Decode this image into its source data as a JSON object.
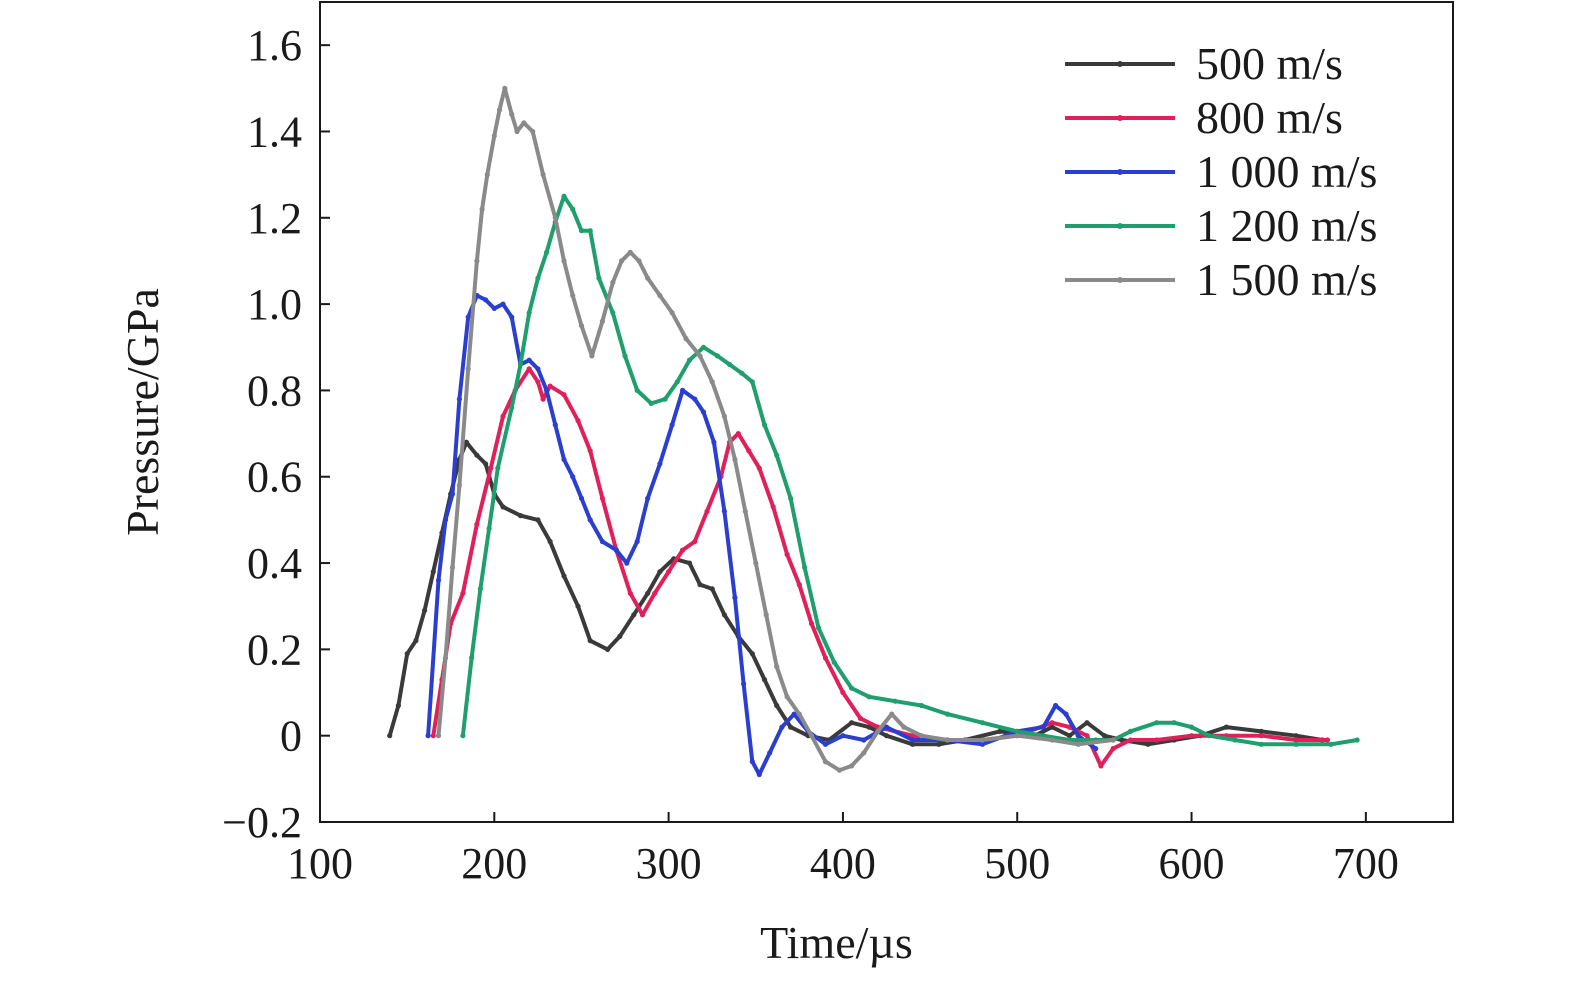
{
  "chart_data": {
    "type": "line",
    "title": "",
    "xlabel": "Time/µs",
    "ylabel": "Pressure/GPa",
    "xlim": [
      100,
      750
    ],
    "ylim": [
      -0.2,
      1.7
    ],
    "x_ticks": [
      100,
      200,
      300,
      400,
      500,
      600,
      700
    ],
    "x_tick_labels": [
      "100",
      "200",
      "300",
      "400",
      "500",
      "600",
      "700"
    ],
    "y_ticks": [
      -0.2,
      0,
      0.2,
      0.4,
      0.6,
      0.8,
      1.0,
      1.2,
      1.4,
      1.6
    ],
    "y_tick_labels": [
      "−0.2",
      "0",
      "0.2",
      "0.4",
      "0.6",
      "0.8",
      "1.0",
      "1.2",
      "1.4",
      "1.6"
    ],
    "grid": false,
    "legend_position": "top-right",
    "series": [
      {
        "name": "500 m/s",
        "color": "#3a3a3a",
        "points": [
          [
            140,
            0.0
          ],
          [
            145,
            0.07
          ],
          [
            150,
            0.19
          ],
          [
            155,
            0.22
          ],
          [
            160,
            0.29
          ],
          [
            165,
            0.38
          ],
          [
            170,
            0.47
          ],
          [
            175,
            0.56
          ],
          [
            180,
            0.64
          ],
          [
            184,
            0.68
          ],
          [
            190,
            0.65
          ],
          [
            195,
            0.63
          ],
          [
            200,
            0.56
          ],
          [
            205,
            0.53
          ],
          [
            215,
            0.51
          ],
          [
            225,
            0.5
          ],
          [
            232,
            0.45
          ],
          [
            240,
            0.37
          ],
          [
            248,
            0.3
          ],
          [
            255,
            0.22
          ],
          [
            265,
            0.2
          ],
          [
            272,
            0.23
          ],
          [
            280,
            0.28
          ],
          [
            288,
            0.33
          ],
          [
            295,
            0.38
          ],
          [
            303,
            0.41
          ],
          [
            312,
            0.4
          ],
          [
            318,
            0.35
          ],
          [
            325,
            0.34
          ],
          [
            332,
            0.28
          ],
          [
            340,
            0.23
          ],
          [
            348,
            0.19
          ],
          [
            355,
            0.13
          ],
          [
            362,
            0.07
          ],
          [
            370,
            0.02
          ],
          [
            380,
            0.0
          ],
          [
            392,
            -0.01
          ],
          [
            405,
            0.03
          ],
          [
            415,
            0.02
          ],
          [
            425,
            0.0
          ],
          [
            440,
            -0.02
          ],
          [
            455,
            -0.02
          ],
          [
            470,
            -0.01
          ],
          [
            490,
            0.01
          ],
          [
            510,
            0.0
          ],
          [
            520,
            0.02
          ],
          [
            530,
            0.0
          ],
          [
            540,
            0.03
          ],
          [
            550,
            0.0
          ],
          [
            560,
            -0.01
          ],
          [
            575,
            -0.02
          ],
          [
            590,
            -0.01
          ],
          [
            605,
            0.0
          ],
          [
            620,
            0.02
          ],
          [
            640,
            0.01
          ],
          [
            660,
            0.0
          ],
          [
            675,
            -0.01
          ]
        ]
      },
      {
        "name": "800 m/s",
        "color": "#e0205a",
        "points": [
          [
            165,
            0.0
          ],
          [
            170,
            0.13
          ],
          [
            175,
            0.26
          ],
          [
            182,
            0.33
          ],
          [
            190,
            0.49
          ],
          [
            198,
            0.62
          ],
          [
            205,
            0.74
          ],
          [
            212,
            0.8
          ],
          [
            220,
            0.85
          ],
          [
            225,
            0.82
          ],
          [
            228,
            0.78
          ],
          [
            232,
            0.81
          ],
          [
            240,
            0.79
          ],
          [
            248,
            0.73
          ],
          [
            255,
            0.66
          ],
          [
            262,
            0.55
          ],
          [
            270,
            0.43
          ],
          [
            278,
            0.33
          ],
          [
            285,
            0.28
          ],
          [
            292,
            0.33
          ],
          [
            300,
            0.38
          ],
          [
            308,
            0.43
          ],
          [
            315,
            0.45
          ],
          [
            322,
            0.52
          ],
          [
            330,
            0.6
          ],
          [
            335,
            0.68
          ],
          [
            340,
            0.7
          ],
          [
            346,
            0.66
          ],
          [
            352,
            0.62
          ],
          [
            360,
            0.53
          ],
          [
            368,
            0.42
          ],
          [
            375,
            0.35
          ],
          [
            382,
            0.26
          ],
          [
            390,
            0.18
          ],
          [
            400,
            0.1
          ],
          [
            410,
            0.04
          ],
          [
            420,
            0.02
          ],
          [
            440,
            0.0
          ],
          [
            460,
            -0.01
          ],
          [
            480,
            -0.01
          ],
          [
            500,
            0.0
          ],
          [
            520,
            0.03
          ],
          [
            530,
            0.02
          ],
          [
            540,
            0.0
          ],
          [
            548,
            -0.07
          ],
          [
            555,
            -0.03
          ],
          [
            565,
            -0.01
          ],
          [
            580,
            -0.01
          ],
          [
            600,
            0.0
          ],
          [
            620,
            0.0
          ],
          [
            640,
            0.0
          ],
          [
            660,
            -0.01
          ],
          [
            678,
            -0.01
          ]
        ]
      },
      {
        "name": "1 000 m/s",
        "color": "#2a3ed0",
        "points": [
          [
            162,
            0.0
          ],
          [
            168,
            0.36
          ],
          [
            172,
            0.5
          ],
          [
            176,
            0.56
          ],
          [
            180,
            0.78
          ],
          [
            185,
            0.97
          ],
          [
            190,
            1.02
          ],
          [
            195,
            1.01
          ],
          [
            200,
            0.99
          ],
          [
            205,
            1.0
          ],
          [
            210,
            0.97
          ],
          [
            215,
            0.86
          ],
          [
            220,
            0.87
          ],
          [
            225,
            0.85
          ],
          [
            230,
            0.8
          ],
          [
            235,
            0.72
          ],
          [
            240,
            0.64
          ],
          [
            245,
            0.6
          ],
          [
            250,
            0.55
          ],
          [
            255,
            0.5
          ],
          [
            262,
            0.45
          ],
          [
            270,
            0.43
          ],
          [
            276,
            0.4
          ],
          [
            282,
            0.45
          ],
          [
            288,
            0.55
          ],
          [
            295,
            0.63
          ],
          [
            302,
            0.72
          ],
          [
            308,
            0.8
          ],
          [
            315,
            0.78
          ],
          [
            320,
            0.75
          ],
          [
            326,
            0.68
          ],
          [
            332,
            0.52
          ],
          [
            338,
            0.32
          ],
          [
            343,
            0.12
          ],
          [
            348,
            -0.06
          ],
          [
            352,
            -0.09
          ],
          [
            358,
            -0.04
          ],
          [
            365,
            0.02
          ],
          [
            372,
            0.05
          ],
          [
            380,
            0.01
          ],
          [
            390,
            -0.02
          ],
          [
            400,
            0.0
          ],
          [
            412,
            -0.01
          ],
          [
            425,
            0.02
          ],
          [
            440,
            -0.01
          ],
          [
            460,
            -0.01
          ],
          [
            480,
            -0.02
          ],
          [
            500,
            0.01
          ],
          [
            515,
            0.02
          ],
          [
            522,
            0.07
          ],
          [
            528,
            0.05
          ],
          [
            535,
            0.0
          ],
          [
            545,
            -0.03
          ]
        ]
      },
      {
        "name": "1 200 m/s",
        "color": "#1f9e6e",
        "points": [
          [
            182,
            0.0
          ],
          [
            187,
            0.18
          ],
          [
            192,
            0.34
          ],
          [
            197,
            0.48
          ],
          [
            202,
            0.62
          ],
          [
            210,
            0.76
          ],
          [
            215,
            0.86
          ],
          [
            220,
            0.98
          ],
          [
            225,
            1.06
          ],
          [
            230,
            1.12
          ],
          [
            235,
            1.19
          ],
          [
            240,
            1.25
          ],
          [
            245,
            1.22
          ],
          [
            250,
            1.17
          ],
          [
            255,
            1.17
          ],
          [
            260,
            1.06
          ],
          [
            268,
            0.98
          ],
          [
            275,
            0.88
          ],
          [
            282,
            0.8
          ],
          [
            290,
            0.77
          ],
          [
            298,
            0.78
          ],
          [
            305,
            0.82
          ],
          [
            312,
            0.87
          ],
          [
            320,
            0.9
          ],
          [
            328,
            0.88
          ],
          [
            335,
            0.86
          ],
          [
            342,
            0.84
          ],
          [
            348,
            0.82
          ],
          [
            355,
            0.72
          ],
          [
            362,
            0.65
          ],
          [
            370,
            0.55
          ],
          [
            378,
            0.39
          ],
          [
            386,
            0.25
          ],
          [
            395,
            0.17
          ],
          [
            405,
            0.11
          ],
          [
            415,
            0.09
          ],
          [
            430,
            0.08
          ],
          [
            445,
            0.07
          ],
          [
            460,
            0.05
          ],
          [
            480,
            0.03
          ],
          [
            500,
            0.01
          ],
          [
            515,
            0.0
          ],
          [
            530,
            -0.01
          ],
          [
            545,
            -0.01
          ],
          [
            555,
            -0.01
          ],
          [
            565,
            0.01
          ],
          [
            580,
            0.03
          ],
          [
            590,
            0.03
          ],
          [
            600,
            0.02
          ],
          [
            610,
            0.0
          ],
          [
            625,
            -0.01
          ],
          [
            640,
            -0.02
          ],
          [
            660,
            -0.02
          ],
          [
            680,
            -0.02
          ],
          [
            695,
            -0.01
          ]
        ]
      },
      {
        "name": "1 500 m/s",
        "color": "#8a8a8a",
        "points": [
          [
            168,
            0.0
          ],
          [
            172,
            0.18
          ],
          [
            176,
            0.39
          ],
          [
            180,
            0.58
          ],
          [
            185,
            0.85
          ],
          [
            190,
            1.1
          ],
          [
            193,
            1.22
          ],
          [
            196,
            1.3
          ],
          [
            200,
            1.39
          ],
          [
            203,
            1.45
          ],
          [
            206,
            1.5
          ],
          [
            210,
            1.44
          ],
          [
            213,
            1.4
          ],
          [
            217,
            1.42
          ],
          [
            222,
            1.4
          ],
          [
            228,
            1.3
          ],
          [
            235,
            1.2
          ],
          [
            240,
            1.1
          ],
          [
            245,
            1.02
          ],
          [
            250,
            0.95
          ],
          [
            256,
            0.88
          ],
          [
            262,
            0.96
          ],
          [
            268,
            1.05
          ],
          [
            273,
            1.1
          ],
          [
            278,
            1.12
          ],
          [
            283,
            1.1
          ],
          [
            288,
            1.06
          ],
          [
            295,
            1.02
          ],
          [
            302,
            0.98
          ],
          [
            310,
            0.92
          ],
          [
            318,
            0.88
          ],
          [
            325,
            0.82
          ],
          [
            332,
            0.74
          ],
          [
            338,
            0.64
          ],
          [
            344,
            0.52
          ],
          [
            350,
            0.4
          ],
          [
            356,
            0.28
          ],
          [
            362,
            0.16
          ],
          [
            368,
            0.09
          ],
          [
            375,
            0.05
          ],
          [
            382,
            0.0
          ],
          [
            390,
            -0.06
          ],
          [
            398,
            -0.08
          ],
          [
            405,
            -0.07
          ],
          [
            412,
            -0.04
          ],
          [
            420,
            0.01
          ],
          [
            428,
            0.05
          ],
          [
            435,
            0.02
          ],
          [
            445,
            0.0
          ],
          [
            460,
            -0.01
          ],
          [
            480,
            -0.01
          ],
          [
            500,
            0.0
          ],
          [
            520,
            -0.01
          ],
          [
            535,
            -0.02
          ],
          [
            555,
            -0.01
          ]
        ]
      }
    ]
  }
}
